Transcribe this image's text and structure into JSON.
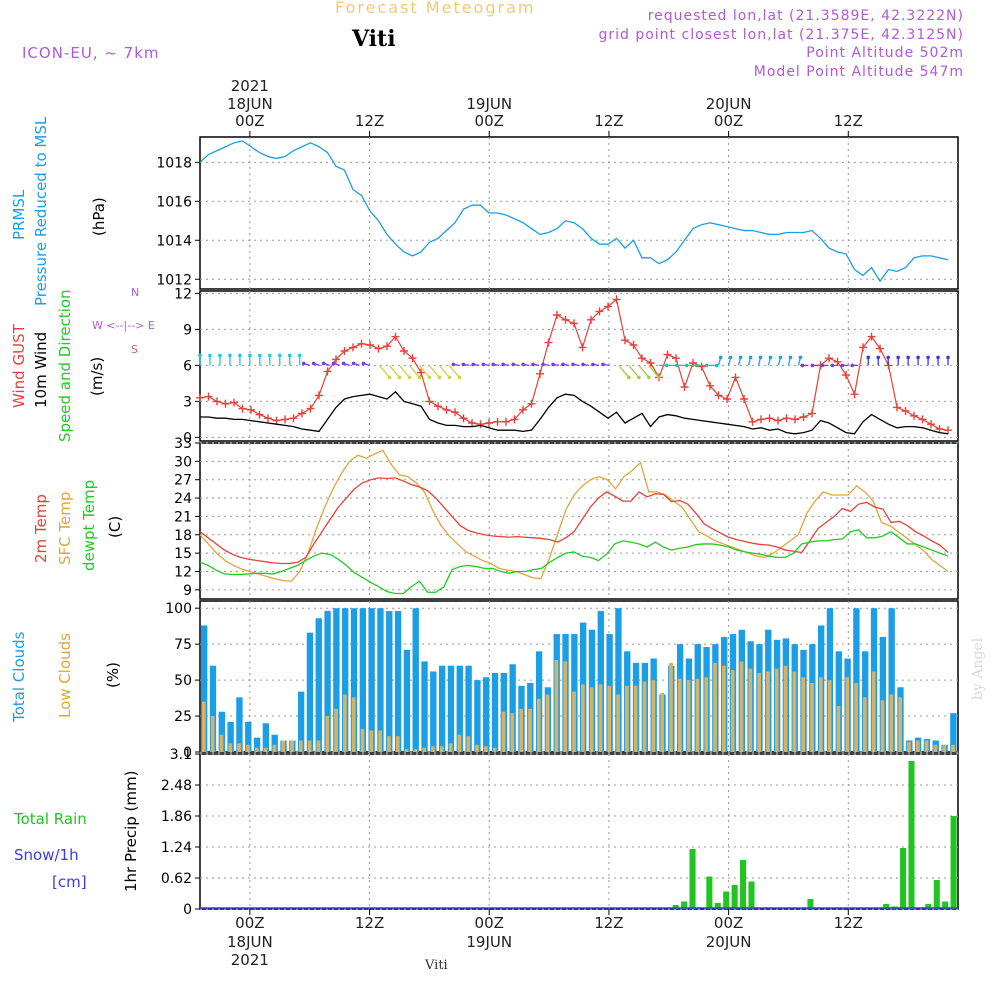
{
  "header": {
    "title": "Forecast Meteogram",
    "station": "Viti",
    "model": "ICON-EU, ~ 7km",
    "requested": "requested lon,lat (21.3589E, 42.3222N)",
    "gridpoint": "grid point closest lon,lat (21.375E, 42.3125N)",
    "point_altitude": "Point Altitude 502m",
    "model_altitude": "Model Point Altitude 547m",
    "signature": "by Angel"
  },
  "time_axis": {
    "year": "2021",
    "ticks": [
      {
        "hour": 0,
        "label": "00Z",
        "date": "18JUN"
      },
      {
        "hour": 12,
        "label": "12Z",
        "date": ""
      },
      {
        "hour": 24,
        "label": "00Z",
        "date": "19JUN"
      },
      {
        "hour": 36,
        "label": "12Z",
        "date": ""
      },
      {
        "hour": 48,
        "label": "00Z",
        "date": "20JUN"
      },
      {
        "hour": 60,
        "label": "12Z",
        "date": ""
      }
    ],
    "start_hour": -5,
    "end_hour": 71
  },
  "panel_labels": {
    "pressure": {
      "name1": "PRMSL",
      "name2": "Pressure Reduced to MSL",
      "unit": "(hPa)"
    },
    "wind": {
      "gust": "Wind GUST",
      "wind10": "10m Wind",
      "speeddir": "Speed and Direction",
      "unit": "(m/s)",
      "compass_n": "N",
      "compass_s": "S",
      "compass_ew": "W <--|--> E"
    },
    "temp": {
      "t2m": "2m Temp",
      "sfc": "SFC Temp",
      "dew": "dewpt Temp",
      "unit": "(C)"
    },
    "clouds": {
      "total": "Total Clouds",
      "low": "Low Clouds",
      "unit": "(%)"
    },
    "precip": {
      "rain": "Total  Rain",
      "snow": "Snow/1h",
      "snow_unit": "[cm]",
      "unit": "1hr Precip (mm)"
    }
  },
  "colors": {
    "pressure": "#1a9ee6",
    "gust": "#e8413a",
    "wind": "#000000",
    "t2m": "#e8413a",
    "sfc": "#e0a63c",
    "dew": "#1fcc1f",
    "total_clouds": "#1a9ee6",
    "low_clouds": "#d3b36a",
    "rain": "#22c422",
    "snow": "#3a3ae8",
    "label_purple": "#b05ad6"
  },
  "chart_data": [
    {
      "type": "line",
      "title": "PRMSL Pressure Reduced to MSL",
      "ylabel": "(hPa)",
      "ylim": [
        1011.5,
        1019.3
      ],
      "yticks": [
        1012,
        1014,
        1016,
        1018
      ],
      "series": [
        {
          "name": "PRMSL",
          "values": [
            1018.0,
            1018.4,
            1018.6,
            1018.8,
            1019.0,
            1019.1,
            1018.8,
            1018.5,
            1018.3,
            1018.2,
            1018.3,
            1018.6,
            1018.8,
            1019.0,
            1018.8,
            1018.5,
            1017.8,
            1017.6,
            1016.6,
            1016.3,
            1015.5,
            1015.0,
            1014.3,
            1013.8,
            1013.4,
            1013.2,
            1013.4,
            1013.9,
            1014.1,
            1014.5,
            1014.9,
            1015.6,
            1015.8,
            1015.8,
            1015.4,
            1015.4,
            1015.3,
            1015.1,
            1014.9,
            1014.6,
            1014.3,
            1014.4,
            1014.6,
            1015.0,
            1014.9,
            1014.6,
            1014.1,
            1013.8,
            1013.8,
            1014.1,
            1013.6,
            1014.0,
            1013.1,
            1013.1,
            1012.8,
            1013.0,
            1013.4,
            1014.0,
            1014.6,
            1014.8,
            1014.9,
            1014.8,
            1014.7,
            1014.6,
            1014.5,
            1014.5,
            1014.4,
            1014.3,
            1014.3,
            1014.4,
            1014.4,
            1014.4,
            1014.5,
            1014.1,
            1013.6,
            1013.4,
            1013.3,
            1012.5,
            1012.2,
            1012.6,
            1011.9,
            1012.5,
            1012.4,
            1012.6,
            1013.1,
            1013.2,
            1013.2,
            1013.1,
            1013.0
          ]
        }
      ]
    },
    {
      "type": "line",
      "title": "Wind GUST / 10m Wind Speed and Direction",
      "ylabel": "(m/s)",
      "ylim": [
        -0.3,
        12.2
      ],
      "yticks": [
        0,
        3,
        6,
        9,
        12
      ],
      "series": [
        {
          "name": "Wind GUST",
          "values": [
            3.3,
            3.4,
            3.0,
            2.8,
            2.9,
            2.4,
            2.3,
            1.9,
            1.6,
            1.4,
            1.5,
            1.6,
            2.0,
            2.4,
            3.5,
            5.5,
            6.5,
            7.2,
            7.5,
            7.8,
            7.7,
            7.4,
            7.6,
            8.4,
            7.2,
            6.6,
            5.4,
            3.0,
            2.6,
            2.3,
            2.1,
            1.6,
            1.2,
            1.1,
            1.2,
            1.3,
            1.3,
            1.5,
            2.3,
            2.8,
            5.3,
            7.9,
            10.2,
            9.8,
            9.5,
            7.5,
            9.8,
            10.5,
            10.9,
            11.5,
            8.1,
            7.7,
            6.6,
            6.2,
            5.0,
            6.9,
            6.6,
            4.2,
            6.2,
            5.9,
            4.3,
            3.5,
            3.2,
            5.0,
            3.2,
            1.3,
            1.5,
            1.6,
            1.4,
            1.6,
            1.5,
            1.7,
            2.0,
            6.0,
            6.6,
            6.3,
            5.2,
            3.6,
            7.5,
            8.4,
            7.4,
            6.0,
            2.5,
            2.2,
            1.8,
            1.5,
            1.1,
            0.7,
            0.6
          ]
        },
        {
          "name": "10m Wind",
          "values": [
            1.7,
            1.7,
            1.6,
            1.6,
            1.5,
            1.5,
            1.4,
            1.3,
            1.2,
            1.1,
            1.0,
            0.9,
            0.7,
            0.6,
            0.5,
            1.5,
            2.5,
            3.2,
            3.4,
            3.5,
            3.6,
            3.4,
            3.2,
            3.8,
            3.0,
            2.8,
            2.6,
            1.5,
            1.2,
            1.0,
            1.0,
            0.9,
            0.9,
            1.0,
            0.8,
            0.6,
            0.6,
            0.6,
            0.5,
            0.6,
            1.5,
            2.5,
            3.3,
            3.6,
            3.5,
            3.0,
            2.6,
            2.1,
            1.6,
            2.1,
            1.2,
            1.6,
            2.0,
            0.9,
            1.7,
            1.9,
            1.8,
            1.6,
            1.5,
            1.4,
            1.3,
            1.2,
            1.1,
            1.0,
            0.9,
            0.7,
            0.8,
            0.6,
            0.7,
            0.4,
            0.3,
            0.4,
            0.6,
            1.4,
            1.2,
            0.8,
            0.4,
            0.3,
            1.3,
            1.9,
            1.5,
            1.1,
            0.8,
            0.9,
            0.9,
            0.8,
            0.6,
            0.4,
            0.3
          ]
        }
      ]
    },
    {
      "type": "line",
      "title": "2m Temp / SFC Temp / dewpt Temp",
      "ylabel": "(C)",
      "ylim": [
        7.5,
        33
      ],
      "yticks": [
        9,
        12,
        15,
        18,
        21,
        24,
        27,
        30,
        33
      ],
      "series": [
        {
          "name": "2m Temp",
          "values": [
            18.5,
            17.5,
            16.5,
            15.5,
            14.8,
            14.3,
            14.0,
            13.8,
            13.6,
            13.4,
            13.3,
            13.3,
            13.5,
            14.3,
            16.5,
            18.5,
            20.5,
            22.5,
            24.0,
            25.5,
            26.5,
            27.0,
            27.3,
            27.2,
            27.3,
            26.8,
            26.2,
            25.8,
            25.2,
            24.0,
            22.5,
            21.0,
            19.5,
            18.7,
            18.3,
            18.0,
            17.8,
            17.7,
            17.6,
            17.7,
            17.6,
            17.5,
            17.4,
            17.2,
            16.8,
            17.5,
            18.5,
            20.5,
            22.5,
            24.0,
            25.0,
            24.3,
            23.5,
            23.5,
            25.0,
            24.2,
            24.7,
            24.6,
            23.4,
            23.6,
            23.0,
            21.5,
            19.8,
            19.0,
            18.3,
            17.6,
            17.2,
            16.9,
            16.6,
            16.4,
            16.3,
            16.0,
            15.5,
            15.3,
            15.1,
            17.0,
            19.0,
            20.0,
            21.0,
            22.3,
            21.8,
            23.0,
            23.3,
            22.5,
            22.2,
            20.0,
            20.2,
            19.5,
            18.5,
            17.8,
            17.0,
            16.3,
            15.1
          ]
        },
        {
          "name": "SFC Temp",
          "values": [
            18.0,
            16.5,
            15.0,
            13.8,
            13.0,
            12.4,
            12.0,
            11.6,
            11.2,
            10.8,
            10.5,
            10.4,
            12.0,
            15.0,
            19.0,
            22.5,
            25.5,
            28.0,
            30.0,
            31.0,
            30.5,
            31.2,
            31.8,
            29.5,
            27.8,
            27.5,
            26.5,
            25.0,
            22.0,
            19.5,
            17.8,
            16.5,
            15.2,
            14.5,
            13.8,
            13.3,
            12.5,
            12.2,
            12.0,
            11.5,
            11.0,
            10.8,
            14.0,
            18.0,
            22.0,
            24.5,
            26.0,
            27.0,
            27.5,
            27.0,
            25.5,
            27.5,
            28.5,
            29.8,
            25.0,
            25.0,
            24.5,
            23.5,
            22.5,
            20.5,
            18.5,
            17.8,
            17.0,
            16.5,
            16.0,
            15.5,
            15.0,
            14.5,
            14.3,
            15.0,
            16.0,
            17.0,
            18.0,
            21.5,
            23.5,
            25.0,
            24.5,
            24.5,
            24.5,
            26.0,
            25.0,
            23.5,
            20.0,
            19.5,
            18.5,
            17.5,
            16.5,
            15.5,
            14.0,
            13.0,
            12.0
          ]
        },
        {
          "name": "dewpt Temp",
          "values": [
            13.5,
            13.0,
            12.2,
            11.6,
            11.5,
            11.5,
            11.6,
            11.7,
            11.7,
            11.6,
            12.0,
            12.5,
            13.0,
            13.8,
            14.5,
            15.0,
            14.8,
            14.0,
            13.0,
            11.8,
            11.0,
            10.2,
            9.5,
            8.7,
            8.4,
            8.4,
            9.5,
            10.4,
            8.6,
            8.6,
            9.5,
            12.3,
            12.8,
            13.0,
            12.8,
            12.5,
            12.5,
            12.0,
            11.7,
            12.0,
            12.0,
            12.3,
            12.5,
            13.5,
            14.3,
            15.0,
            15.2,
            14.5,
            14.3,
            13.8,
            14.8,
            16.5,
            17.0,
            16.8,
            16.5,
            16.0,
            16.8,
            16.0,
            15.5,
            15.8,
            16.0,
            16.4,
            16.5,
            16.5,
            16.3,
            16.0,
            15.5,
            15.2,
            15.0,
            14.8,
            14.5,
            14.3,
            14.3,
            15.0,
            16.5,
            16.8,
            17.0,
            17.0,
            17.2,
            17.3,
            18.5,
            18.8,
            17.5,
            17.5,
            17.8,
            18.5,
            17.5,
            16.5,
            16.5,
            16.0,
            15.5,
            15.0,
            14.5
          ]
        }
      ]
    },
    {
      "type": "bar",
      "title": "Total Clouds / Low Clouds",
      "ylabel": "(%)",
      "ylim": [
        0,
        105
      ],
      "yticks": [
        0,
        25,
        50,
        75,
        100
      ],
      "series": [
        {
          "name": "Total Clouds",
          "values": [
            88,
            60,
            28,
            21,
            38,
            21,
            10,
            20,
            12,
            8,
            8,
            42,
            83,
            93,
            98,
            100,
            100,
            100,
            100,
            100,
            100,
            98,
            98,
            71,
            100,
            63,
            56,
            60,
            60,
            60,
            60,
            50,
            52,
            55,
            55,
            61,
            46,
            48,
            70,
            45,
            82,
            82,
            82,
            90,
            85,
            98,
            82,
            100,
            70,
            62,
            62,
            65,
            40,
            60,
            75,
            65,
            75,
            73,
            75,
            80,
            82,
            85,
            77,
            75,
            85,
            78,
            79,
            75,
            71,
            75,
            88,
            100,
            70,
            65,
            100,
            70,
            100,
            80,
            100,
            45,
            8,
            10,
            9,
            8,
            5,
            27
          ]
        },
        {
          "name": "Low Clouds",
          "values": [
            35,
            25,
            12,
            6,
            6,
            5,
            3,
            3,
            5,
            8,
            8,
            8,
            8,
            8,
            25,
            30,
            40,
            38,
            16,
            15,
            15,
            11,
            11,
            2,
            2,
            3,
            4,
            4,
            6,
            12,
            11,
            5,
            4,
            3,
            28,
            27,
            30,
            30,
            37,
            40,
            64,
            63,
            42,
            47,
            45,
            47,
            46,
            40,
            46,
            46,
            49,
            50,
            41,
            62,
            51,
            50,
            51,
            52,
            62,
            60,
            57,
            63,
            58,
            55,
            56,
            58,
            60,
            56,
            52,
            48,
            52,
            50,
            32,
            52,
            48,
            38,
            56,
            36,
            40,
            38,
            7,
            8,
            8,
            5,
            5,
            5
          ]
        }
      ]
    },
    {
      "type": "bar",
      "title": "1hr Precip (mm)",
      "ylabel": "1hr Precip (mm)",
      "ylim": [
        0,
        3.1
      ],
      "yticks": [
        0,
        0.62,
        1.24,
        1.86,
        2.48,
        3.1
      ],
      "series": [
        {
          "name": "Total Rain",
          "values": [
            0,
            0,
            0,
            0,
            0,
            0,
            0,
            0,
            0,
            0,
            0,
            0,
            0,
            0,
            0,
            0,
            0,
            0,
            0,
            0,
            0,
            0,
            0,
            0,
            0,
            0,
            0,
            0,
            0,
            0,
            0,
            0,
            0,
            0,
            0,
            0,
            0,
            0,
            0,
            0,
            0,
            0,
            0,
            0,
            0,
            0,
            0,
            0,
            0,
            0,
            0,
            0,
            0,
            0,
            0,
            0,
            0.08,
            0.15,
            1.2,
            0,
            0.65,
            0.12,
            0.35,
            0.48,
            0.98,
            0.55,
            0,
            0,
            0,
            0,
            0,
            0,
            0.2,
            0,
            0,
            0,
            0,
            0,
            0,
            0,
            0,
            0.1,
            0.05,
            1.22,
            2.96,
            0,
            0.1,
            0.58,
            0.15,
            1.86
          ]
        }
      ]
    }
  ]
}
